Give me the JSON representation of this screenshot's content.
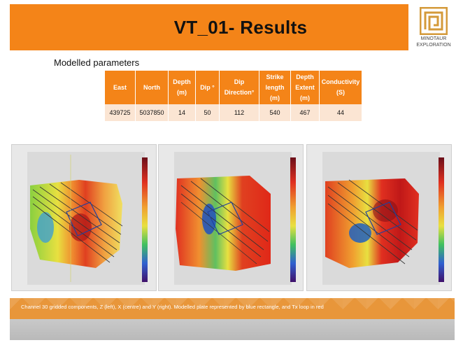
{
  "slide": {
    "title": "VT_01- Results",
    "logo": {
      "line1": "MINOTAUR",
      "line2": "EXPLORATION"
    },
    "section_heading": "Modelled parameters",
    "caption": "Channel 30 gridded components, Z (left), X (centre) and Y (right).  Modelled plate represented by blue rectangle, and Tx loop in red"
  },
  "params_table": {
    "headers": [
      [
        "East"
      ],
      [
        "North"
      ],
      [
        "Depth",
        "(m)"
      ],
      [
        "Dip °"
      ],
      [
        "Dip",
        "Direction°"
      ],
      [
        "Strike",
        "length",
        "(m)"
      ],
      [
        "Depth",
        "Extent",
        "(m)"
      ],
      [
        "Conductivity",
        "(S)"
      ]
    ],
    "row": [
      "439725",
      "5037850",
      "14",
      "50",
      "112",
      "540",
      "467",
      "44"
    ]
  },
  "plots": [
    {
      "name": "Z component grid"
    },
    {
      "name": "X component grid"
    },
    {
      "name": "Y component grid"
    }
  ],
  "colors": {
    "accent": "#f48418",
    "table_row": "#fbe5d3",
    "caption_band": "#e8963a"
  }
}
